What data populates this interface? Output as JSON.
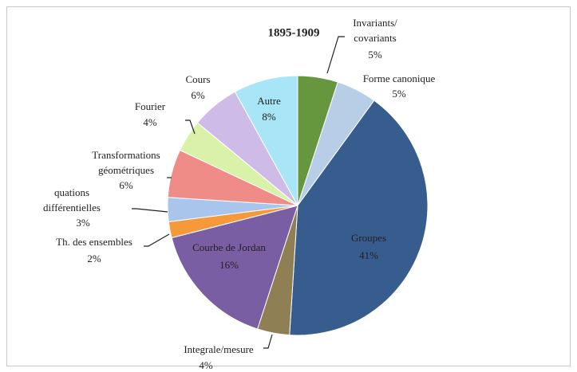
{
  "chart_data": {
    "type": "pie",
    "title": "1895-1909",
    "categories": [
      "Invariants/\ncovariants",
      "Forme canonique",
      "Groupes",
      "Integrale/mesure",
      "Courbe de Jordan",
      "Th. des ensembles",
      "quations\ndifférentielles",
      "Transformations\ngéométriques",
      "Fourier",
      "Cours",
      "Autre"
    ],
    "values": [
      5,
      5,
      41,
      4,
      16,
      2,
      3,
      6,
      4,
      6,
      8
    ],
    "value_labels": [
      "5%",
      "5%",
      "41%",
      "4%",
      "16%",
      "2%",
      "3%",
      "6%",
      "4%",
      "6%",
      "8%"
    ],
    "colors": [
      "#66973f",
      "#b8cde6",
      "#375d8e",
      "#8e7f55",
      "#7a5ea3",
      "#f5993a",
      "#a9c5ec",
      "#ef8c88",
      "#daf1aa",
      "#cfbbe7",
      "#a8e5f6"
    ]
  }
}
